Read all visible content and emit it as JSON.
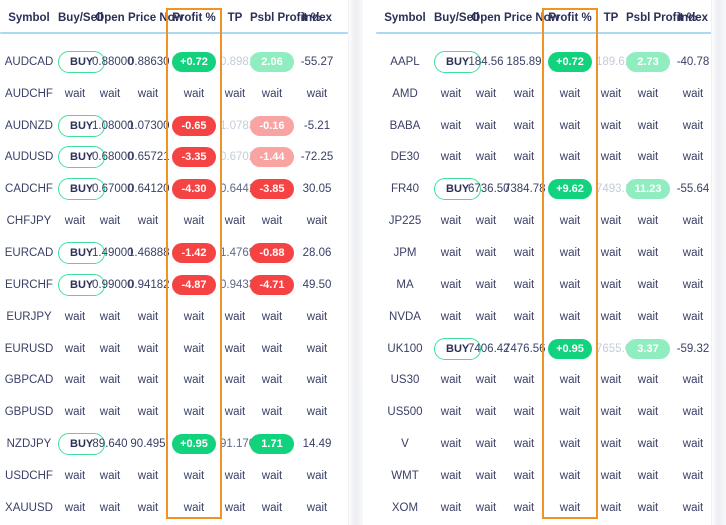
{
  "columns": [
    "Symbol",
    "Buy/Sell",
    "Open",
    "Price Now",
    "Profit %",
    "TP",
    "Psbl Profit %",
    "Index"
  ],
  "labels": {
    "buy": "BUY",
    "wait": "wait"
  },
  "colors": {
    "profit_green": "#13d27d",
    "profit_green_faded": "#90edc0",
    "profit_red": "#f54343",
    "profit_red_faded": "#f9a3a2",
    "highlight_orange": "#ef9327",
    "header_divider_blue": "#a9d9f4",
    "text_navy": "#3a4066",
    "tp_muted_gray": "#c4cdd9",
    "buy_border_green": "#40dfa0"
  },
  "tables": [
    {
      "name": "forex-watchlist",
      "rows": [
        {
          "symbol": "AUDCAD",
          "status": "buy",
          "open": "0.88000",
          "price_now": "0.88630",
          "profit": "+0.72",
          "profit_style": "green",
          "tp": "0.89812",
          "tp_style": "muted",
          "psbl": "2.06",
          "psbl_style": "green-faded",
          "index": "-55.27"
        },
        {
          "symbol": "AUDCHF",
          "status": "wait"
        },
        {
          "symbol": "AUDNZD",
          "status": "buy",
          "open": "1.08000",
          "price_now": "1.07300",
          "profit": "-0.65",
          "profit_style": "red",
          "tp": "1.07831",
          "tp_style": "muted",
          "psbl": "-0.16",
          "psbl_style": "red-faded",
          "index": "-5.21"
        },
        {
          "symbol": "AUDUSD",
          "status": "buy",
          "open": "0.68000",
          "price_now": "0.65721",
          "profit": "-3.35",
          "profit_style": "red",
          "tp": "0.67021",
          "tp_style": "muted",
          "psbl": "-1.44",
          "psbl_style": "red-faded",
          "index": "-72.25"
        },
        {
          "symbol": "CADCHF",
          "status": "buy",
          "open": "0.67000",
          "price_now": "0.64120",
          "profit": "-4.30",
          "profit_style": "red",
          "tp": "0.64418",
          "tp_style": "active",
          "psbl": "-3.85",
          "psbl_style": "red",
          "index": "30.05"
        },
        {
          "symbol": "CHFJPY",
          "status": "wait"
        },
        {
          "symbol": "EURCAD",
          "status": "buy",
          "open": "1.49000",
          "price_now": "1.46888",
          "profit": "-1.42",
          "profit_style": "red",
          "tp": "1.47695",
          "tp_style": "active",
          "psbl": "-0.88",
          "psbl_style": "red",
          "index": "28.06"
        },
        {
          "symbol": "EURCHF",
          "status": "buy",
          "open": "0.99000",
          "price_now": "0.94182",
          "profit": "-4.87",
          "profit_style": "red",
          "tp": "0.94339",
          "tp_style": "active",
          "psbl": "-4.71",
          "psbl_style": "red",
          "index": "49.50"
        },
        {
          "symbol": "EURJPY",
          "status": "wait"
        },
        {
          "symbol": "EURUSD",
          "status": "wait"
        },
        {
          "symbol": "GBPCAD",
          "status": "wait"
        },
        {
          "symbol": "GBPUSD",
          "status": "wait"
        },
        {
          "symbol": "NZDJPY",
          "status": "buy",
          "open": "89.640",
          "price_now": "90.495",
          "profit": "+0.95",
          "profit_style": "green",
          "tp": "91.170",
          "tp_style": "active",
          "psbl": "1.71",
          "psbl_style": "green",
          "index": "14.49"
        },
        {
          "symbol": "USDCHF",
          "status": "wait"
        },
        {
          "symbol": "XAUUSD",
          "status": "wait"
        }
      ]
    },
    {
      "name": "stocks-indices-watchlist",
      "rows": [
        {
          "symbol": "AAPL",
          "status": "buy",
          "open": "184.56",
          "price_now": "185.89",
          "profit": "+0.72",
          "profit_style": "green",
          "tp": "189.61",
          "tp_style": "muted",
          "psbl": "2.73",
          "psbl_style": "green-faded",
          "index": "-40.78"
        },
        {
          "symbol": "AMD",
          "status": "wait"
        },
        {
          "symbol": "BABA",
          "status": "wait"
        },
        {
          "symbol": "DE30",
          "status": "wait"
        },
        {
          "symbol": "FR40",
          "status": "buy",
          "open": "6736.50",
          "price_now": "7384.78",
          "profit": "+9.62",
          "profit_style": "green",
          "tp": "7493.10",
          "tp_style": "muted",
          "psbl": "11.23",
          "psbl_style": "green-faded",
          "index": "-55.64"
        },
        {
          "symbol": "JP225",
          "status": "wait"
        },
        {
          "symbol": "JPM",
          "status": "wait"
        },
        {
          "symbol": "MA",
          "status": "wait"
        },
        {
          "symbol": "NVDA",
          "status": "wait"
        },
        {
          "symbol": "UK100",
          "status": "buy",
          "open": "7406.42",
          "price_now": "7476.56",
          "profit": "+0.95",
          "profit_style": "green",
          "tp": "7655.67",
          "tp_style": "muted",
          "psbl": "3.37",
          "psbl_style": "green-faded",
          "index": "-59.32"
        },
        {
          "symbol": "US30",
          "status": "wait"
        },
        {
          "symbol": "US500",
          "status": "wait"
        },
        {
          "symbol": "V",
          "status": "wait"
        },
        {
          "symbol": "WMT",
          "status": "wait"
        },
        {
          "symbol": "XOM",
          "status": "wait"
        }
      ]
    }
  ]
}
